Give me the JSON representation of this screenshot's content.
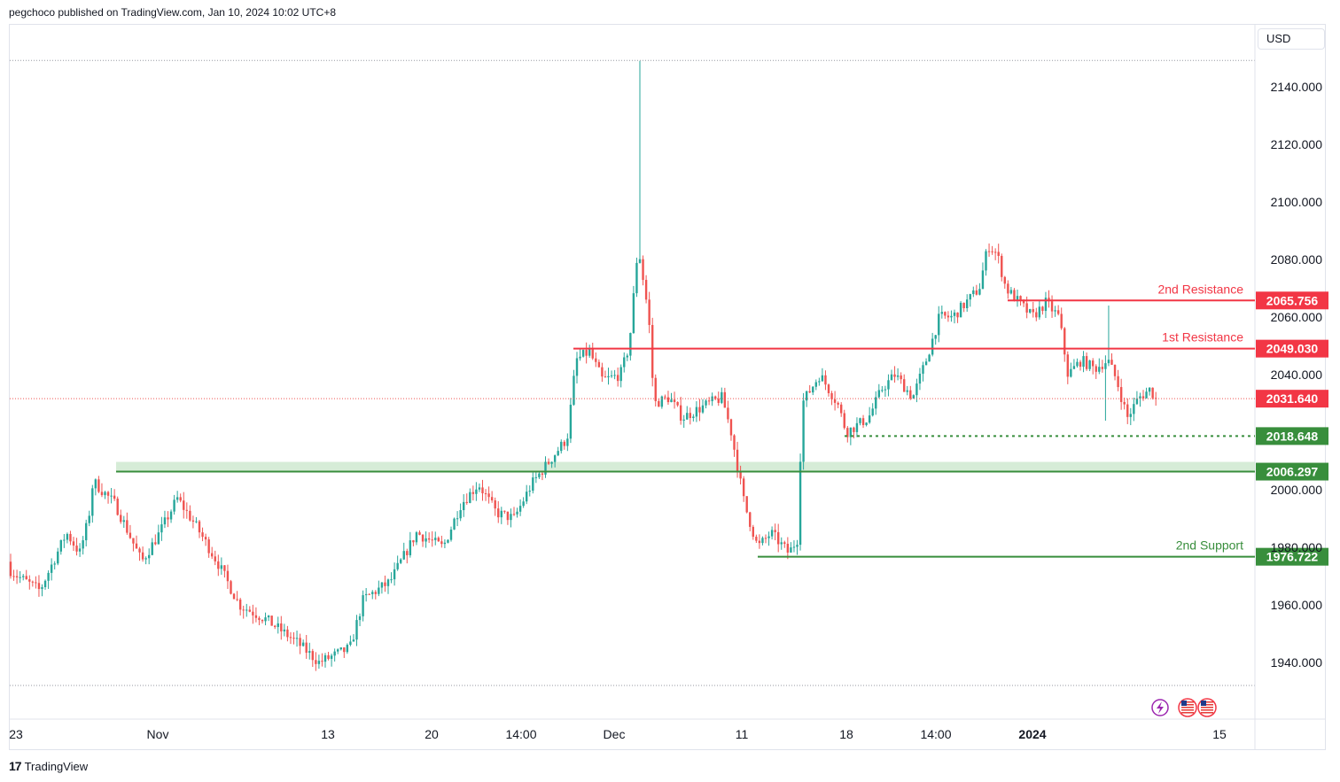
{
  "header": {
    "published_text": "pegchoco published on TradingView.com, Jan 10, 2024 10:02 UTC+8"
  },
  "currency_button": {
    "label": "USD"
  },
  "footer": {
    "brand": "TradingView",
    "logo_glyph": "17"
  },
  "colors": {
    "up": "#26a69a",
    "down": "#ef5350",
    "resistance": "#f23645",
    "support": "#388e3c",
    "price_label_current": "#f23645"
  },
  "chart_data": {
    "type": "candlestick",
    "x_ticks": [
      "23",
      "Nov",
      "13",
      "20",
      "14:00",
      "Dec",
      "11",
      "18",
      "14:00",
      "2024",
      "15"
    ],
    "y_ticks": [
      "2140.000",
      "2120.000",
      "2100.000",
      "2080.000",
      "2060.000",
      "2040.000",
      "2000.000",
      "1980.000",
      "1960.000",
      "1940.000"
    ],
    "ylim": [
      1925,
      2155
    ],
    "period_high": 2149,
    "period_low": 1932,
    "current_price": 2031.64,
    "levels": [
      {
        "value": 2065.756,
        "label": "2nd Resistance",
        "price_label": "2065.756",
        "kind": "resistance",
        "style": "solid"
      },
      {
        "value": 2049.03,
        "label": "1st Resistance",
        "price_label": "2049.030",
        "kind": "resistance",
        "style": "solid"
      },
      {
        "value": 2031.64,
        "label": "",
        "price_label": "2031.640",
        "kind": "current",
        "style": "dotted"
      },
      {
        "value": 2018.648,
        "label": "",
        "price_label": "2018.648",
        "kind": "support",
        "style": "dashed"
      },
      {
        "value": 2006.297,
        "label": "",
        "price_label": "2006.297",
        "kind": "support",
        "style": "zone"
      },
      {
        "value": 1976.722,
        "label": "2nd Support",
        "price_label": "1976.722",
        "kind": "support",
        "style": "solid"
      }
    ],
    "path_segments": [
      [
        0,
        1975
      ],
      [
        20,
        1970
      ],
      [
        45,
        1965
      ],
      [
        75,
        1985
      ],
      [
        90,
        1978
      ],
      [
        100,
        1990
      ],
      [
        105,
        2003
      ],
      [
        130,
        1995
      ],
      [
        160,
        1975
      ],
      [
        180,
        1985
      ],
      [
        200,
        1997
      ],
      [
        220,
        1988
      ],
      [
        245,
        1975
      ],
      [
        270,
        1960
      ],
      [
        300,
        1955
      ],
      [
        335,
        1947
      ],
      [
        360,
        1940
      ],
      [
        395,
        1945
      ],
      [
        410,
        1962
      ],
      [
        440,
        1968
      ],
      [
        470,
        1985
      ],
      [
        500,
        1980
      ],
      [
        520,
        1995
      ],
      [
        540,
        2002
      ],
      [
        560,
        1992
      ],
      [
        580,
        1990
      ],
      [
        600,
        2002
      ],
      [
        620,
        2010
      ],
      [
        640,
        2018
      ],
      [
        650,
        2045
      ],
      [
        665,
        2048
      ],
      [
        680,
        2038
      ],
      [
        700,
        2040
      ],
      [
        710,
        2050
      ],
      [
        720,
        2085
      ],
      [
        732,
        2060
      ],
      [
        738,
        2030
      ],
      [
        755,
        2032
      ],
      [
        770,
        2025
      ],
      [
        800,
        2030
      ],
      [
        815,
        2032
      ],
      [
        825,
        2020
      ],
      [
        840,
        1995
      ],
      [
        855,
        1980
      ],
      [
        870,
        1985
      ],
      [
        890,
        1978
      ],
      [
        900,
        1983
      ],
      [
        905,
        2030
      ],
      [
        925,
        2040
      ],
      [
        945,
        2030
      ],
      [
        955,
        2020
      ],
      [
        980,
        2025
      ],
      [
        995,
        2035
      ],
      [
        1010,
        2040
      ],
      [
        1030,
        2032
      ],
      [
        1045,
        2045
      ],
      [
        1060,
        2060
      ],
      [
        1075,
        2060
      ],
      [
        1090,
        2065
      ],
      [
        1105,
        2070
      ],
      [
        1115,
        2085
      ],
      [
        1125,
        2082
      ],
      [
        1135,
        2070
      ],
      [
        1150,
        2065
      ],
      [
        1165,
        2060
      ],
      [
        1180,
        2065
      ],
      [
        1195,
        2060
      ],
      [
        1205,
        2040
      ],
      [
        1220,
        2045
      ],
      [
        1235,
        2042
      ],
      [
        1250,
        2045
      ],
      [
        1260,
        2038
      ],
      [
        1272,
        2025
      ],
      [
        1285,
        2032
      ],
      [
        1298,
        2035
      ],
      [
        1305,
        2031
      ]
    ]
  }
}
